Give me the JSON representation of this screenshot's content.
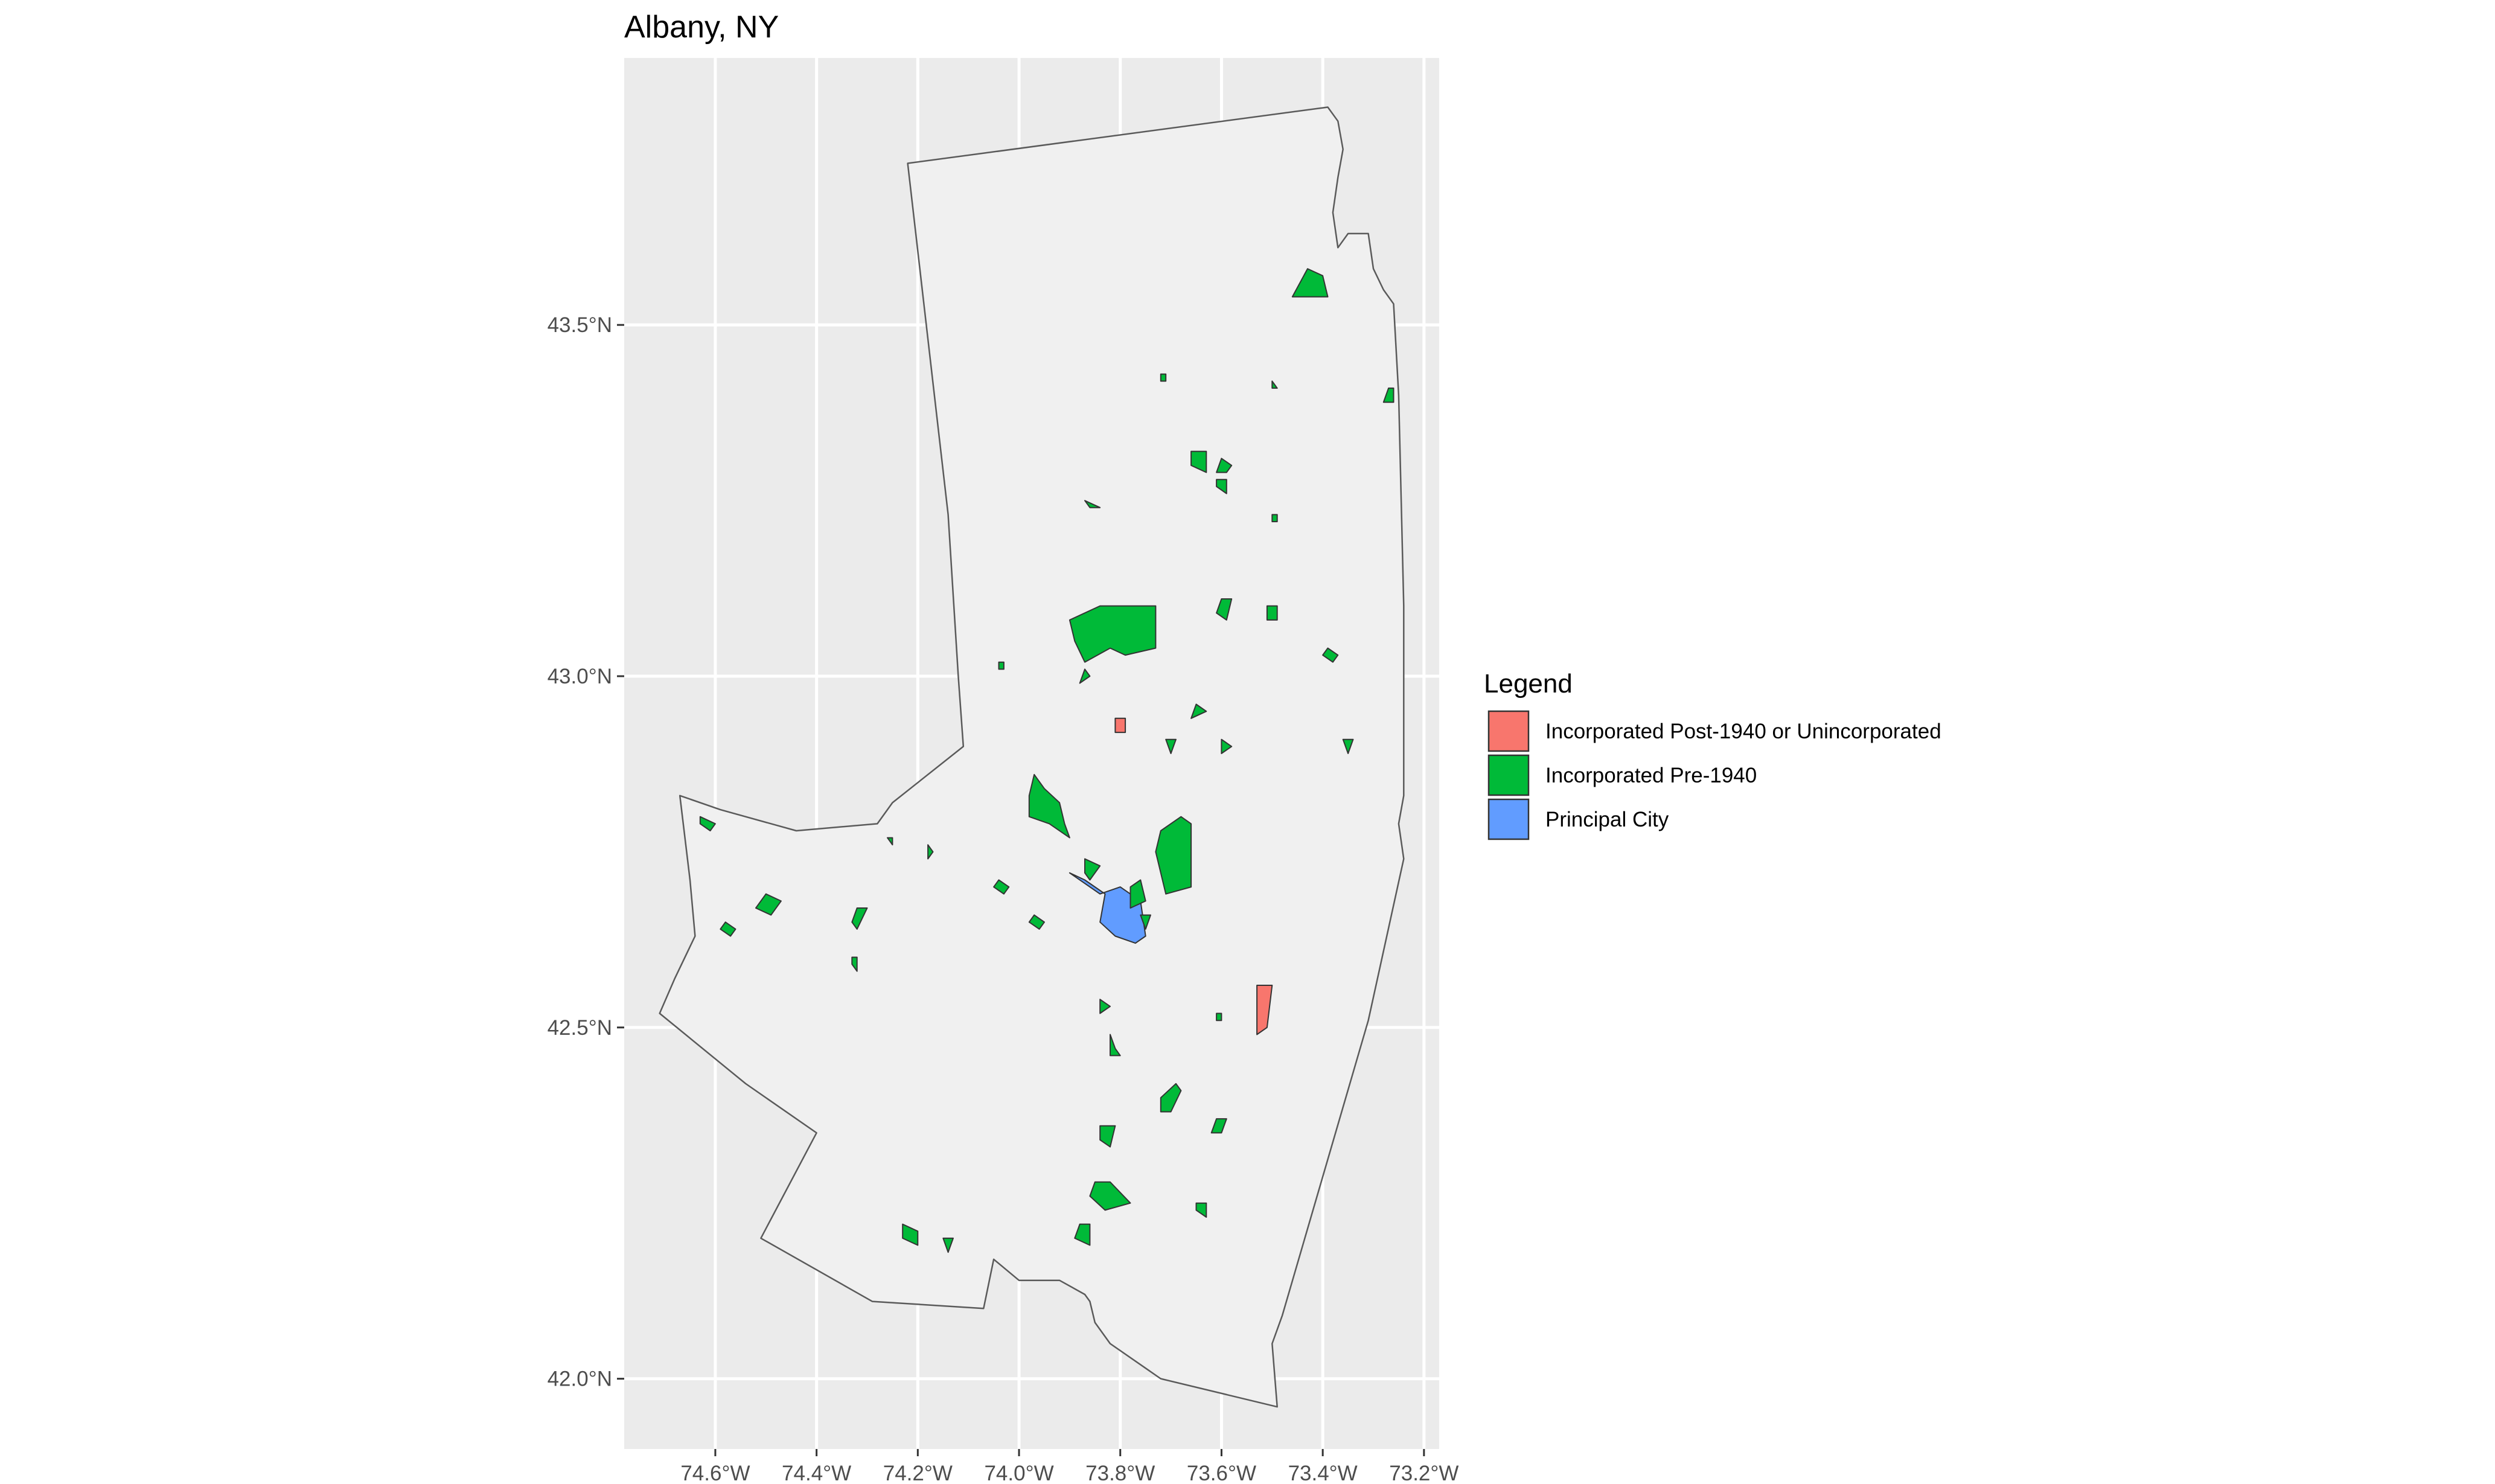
{
  "title": "Albany, NY",
  "colors": {
    "panel_background": "#ebebeb",
    "grid": "#ffffff",
    "region_fill": "#f0f0f0",
    "region_stroke": "#5a5a5a",
    "post1940": "#f8766d",
    "pre1940": "#00ba38",
    "principal": "#619cff",
    "shape_stroke": "#333333"
  },
  "axes": {
    "x_ticks": [
      "74.6°W",
      "74.4°W",
      "74.2°W",
      "74.0°W",
      "73.8°W",
      "73.6°W",
      "73.4°W",
      "73.2°W"
    ],
    "y_ticks": [
      "43.5°N",
      "43.0°N",
      "42.5°N",
      "42.0°N"
    ]
  },
  "legend": {
    "title": "Legend",
    "items": [
      {
        "label": "Incorporated Post-1940 or Unincorporated",
        "color": "#f8766d"
      },
      {
        "label": "Incorporated Pre-1940",
        "color": "#00ba38"
      },
      {
        "label": "Principal City",
        "color": "#619cff"
      }
    ]
  },
  "map_data": {
    "x_range": [
      -74.78,
      -73.17
    ],
    "y_range": [
      41.9,
      43.88
    ],
    "x_tick_values": [
      -74.6,
      -74.4,
      -74.2,
      -74.0,
      -73.8,
      -73.6,
      -73.4,
      -73.2
    ],
    "y_tick_values": [
      43.5,
      43.0,
      42.5,
      42.0
    ],
    "region_outline": [
      [
        -74.22,
        43.73
      ],
      [
        -73.39,
        43.81
      ],
      [
        -73.37,
        43.79
      ],
      [
        -73.36,
        43.75
      ],
      [
        -73.37,
        43.71
      ],
      [
        -73.38,
        43.66
      ],
      [
        -73.37,
        43.61
      ],
      [
        -73.35,
        43.63
      ],
      [
        -73.31,
        43.63
      ],
      [
        -73.3,
        43.58
      ],
      [
        -73.28,
        43.55
      ],
      [
        -73.26,
        43.53
      ],
      [
        -73.25,
        43.4
      ],
      [
        -73.24,
        43.1
      ],
      [
        -73.24,
        42.83
      ],
      [
        -73.25,
        42.79
      ],
      [
        -73.24,
        42.74
      ],
      [
        -73.31,
        42.51
      ],
      [
        -73.48,
        42.09
      ],
      [
        -73.5,
        42.05
      ],
      [
        -73.49,
        41.96
      ],
      [
        -73.72,
        42.0
      ],
      [
        -73.82,
        42.05
      ],
      [
        -73.85,
        42.08
      ],
      [
        -73.86,
        42.11
      ],
      [
        -73.87,
        42.12
      ],
      [
        -73.92,
        42.14
      ],
      [
        -74.0,
        42.14
      ],
      [
        -74.05,
        42.17
      ],
      [
        -74.07,
        42.1
      ],
      [
        -74.29,
        42.11
      ],
      [
        -74.51,
        42.2
      ],
      [
        -74.4,
        42.35
      ],
      [
        -74.54,
        42.42
      ],
      [
        -74.71,
        42.52
      ],
      [
        -74.68,
        42.57
      ],
      [
        -74.64,
        42.63
      ],
      [
        -74.65,
        42.71
      ],
      [
        -74.67,
        42.83
      ],
      [
        -74.59,
        42.81
      ],
      [
        -74.44,
        42.78
      ],
      [
        -74.28,
        42.79
      ],
      [
        -74.25,
        42.82
      ],
      [
        -74.11,
        42.9
      ],
      [
        -74.12,
        43.0
      ],
      [
        -74.14,
        43.23
      ],
      [
        -74.22,
        43.73
      ]
    ],
    "places": [
      {
        "category": "principal",
        "polygon": [
          [
            -73.9,
            42.72
          ],
          [
            -73.84,
            42.69
          ],
          [
            -73.8,
            42.7
          ],
          [
            -73.76,
            42.68
          ],
          [
            -73.75,
            42.63
          ],
          [
            -73.77,
            42.62
          ],
          [
            -73.81,
            42.63
          ],
          [
            -73.84,
            42.65
          ],
          [
            -73.83,
            42.69
          ],
          [
            -73.87,
            42.71
          ]
        ]
      },
      {
        "category": "pre1940",
        "polygon": [
          [
            -73.9,
            43.08
          ],
          [
            -73.84,
            43.1
          ],
          [
            -73.76,
            43.1
          ],
          [
            -73.73,
            43.1
          ],
          [
            -73.73,
            43.04
          ],
          [
            -73.79,
            43.03
          ],
          [
            -73.82,
            43.04
          ],
          [
            -73.87,
            43.02
          ],
          [
            -73.89,
            43.05
          ]
        ]
      },
      {
        "category": "pre1940",
        "polygon": [
          [
            -73.97,
            42.86
          ],
          [
            -73.95,
            42.84
          ],
          [
            -73.92,
            42.82
          ],
          [
            -73.91,
            42.79
          ],
          [
            -73.9,
            42.77
          ],
          [
            -73.94,
            42.79
          ],
          [
            -73.98,
            42.8
          ],
          [
            -73.98,
            42.83
          ]
        ]
      },
      {
        "category": "pre1940",
        "polygon": [
          [
            -73.72,
            42.78
          ],
          [
            -73.68,
            42.8
          ],
          [
            -73.66,
            42.79
          ],
          [
            -73.66,
            42.7
          ],
          [
            -73.71,
            42.69
          ],
          [
            -73.72,
            42.72
          ],
          [
            -73.73,
            42.75
          ]
        ]
      },
      {
        "category": "pre1940",
        "polygon": [
          [
            -73.78,
            42.7
          ],
          [
            -73.76,
            42.71
          ],
          [
            -73.75,
            42.68
          ],
          [
            -73.78,
            42.67
          ]
        ]
      },
      {
        "category": "pre1940",
        "polygon": [
          [
            -73.87,
            42.74
          ],
          [
            -73.84,
            42.73
          ],
          [
            -73.86,
            42.71
          ],
          [
            -73.87,
            42.72
          ]
        ]
      },
      {
        "category": "pre1940",
        "polygon": [
          [
            -73.43,
            43.58
          ],
          [
            -73.4,
            43.57
          ],
          [
            -73.39,
            43.54
          ],
          [
            -73.46,
            43.54
          ]
        ]
      },
      {
        "category": "pre1940",
        "polygon": [
          [
            -73.66,
            43.32
          ],
          [
            -73.63,
            43.32
          ],
          [
            -73.63,
            43.29
          ],
          [
            -73.66,
            43.3
          ]
        ]
      },
      {
        "category": "pre1940",
        "polygon": [
          [
            -73.6,
            43.31
          ],
          [
            -73.58,
            43.3
          ],
          [
            -73.59,
            43.29
          ],
          [
            -73.61,
            43.29
          ]
        ]
      },
      {
        "category": "pre1940",
        "polygon": [
          [
            -73.61,
            43.28
          ],
          [
            -73.59,
            43.28
          ],
          [
            -73.59,
            43.26
          ],
          [
            -73.61,
            43.27
          ]
        ]
      },
      {
        "category": "pre1940",
        "polygon": [
          [
            -73.87,
            43.25
          ],
          [
            -73.84,
            43.24
          ],
          [
            -73.86,
            43.24
          ]
        ]
      },
      {
        "category": "pre1940",
        "polygon": [
          [
            -73.72,
            43.43
          ],
          [
            -73.71,
            43.43
          ],
          [
            -73.71,
            43.42
          ],
          [
            -73.72,
            43.42
          ]
        ]
      },
      {
        "category": "pre1940",
        "polygon": [
          [
            -73.5,
            43.42
          ],
          [
            -73.49,
            43.41
          ],
          [
            -73.5,
            43.41
          ]
        ]
      },
      {
        "category": "pre1940",
        "polygon": [
          [
            -73.27,
            43.41
          ],
          [
            -73.26,
            43.41
          ],
          [
            -73.26,
            43.39
          ],
          [
            -73.28,
            43.39
          ]
        ]
      },
      {
        "category": "pre1940",
        "polygon": [
          [
            -73.5,
            43.23
          ],
          [
            -73.49,
            43.23
          ],
          [
            -73.49,
            43.22
          ],
          [
            -73.5,
            43.22
          ]
        ]
      },
      {
        "category": "pre1940",
        "polygon": [
          [
            -73.6,
            43.11
          ],
          [
            -73.58,
            43.11
          ],
          [
            -73.59,
            43.08
          ],
          [
            -73.61,
            43.09
          ]
        ]
      },
      {
        "category": "pre1940",
        "polygon": [
          [
            -73.51,
            43.1
          ],
          [
            -73.49,
            43.1
          ],
          [
            -73.49,
            43.08
          ],
          [
            -73.51,
            43.08
          ]
        ]
      },
      {
        "category": "pre1940",
        "polygon": [
          [
            -73.39,
            43.04
          ],
          [
            -73.37,
            43.03
          ],
          [
            -73.38,
            43.02
          ],
          [
            -73.4,
            43.03
          ]
        ]
      },
      {
        "category": "pre1940",
        "polygon": [
          [
            -73.87,
            43.01
          ],
          [
            -73.86,
            43.0
          ],
          [
            -73.88,
            42.99
          ]
        ]
      },
      {
        "category": "pre1940",
        "polygon": [
          [
            -74.04,
            43.02
          ],
          [
            -74.03,
            43.02
          ],
          [
            -74.03,
            43.01
          ],
          [
            -74.04,
            43.01
          ]
        ]
      },
      {
        "category": "pre1940",
        "polygon": [
          [
            -73.65,
            42.96
          ],
          [
            -73.63,
            42.95
          ],
          [
            -73.66,
            42.94
          ]
        ]
      },
      {
        "category": "pre1940",
        "polygon": [
          [
            -73.71,
            42.91
          ],
          [
            -73.69,
            42.91
          ],
          [
            -73.7,
            42.89
          ]
        ]
      },
      {
        "category": "pre1940",
        "polygon": [
          [
            -73.6,
            42.91
          ],
          [
            -73.58,
            42.9
          ],
          [
            -73.6,
            42.89
          ]
        ]
      },
      {
        "category": "pre1940",
        "polygon": [
          [
            -73.36,
            42.91
          ],
          [
            -73.34,
            42.91
          ],
          [
            -73.35,
            42.89
          ]
        ]
      },
      {
        "category": "pre1940",
        "polygon": [
          [
            -74.63,
            42.8
          ],
          [
            -74.6,
            42.79
          ],
          [
            -74.61,
            42.78
          ],
          [
            -74.63,
            42.79
          ]
        ]
      },
      {
        "category": "pre1940",
        "polygon": [
          [
            -74.5,
            42.69
          ],
          [
            -74.47,
            42.68
          ],
          [
            -74.49,
            42.66
          ],
          [
            -74.52,
            42.67
          ]
        ]
      },
      {
        "category": "pre1940",
        "polygon": [
          [
            -74.58,
            42.65
          ],
          [
            -74.56,
            42.64
          ],
          [
            -74.57,
            42.63
          ],
          [
            -74.59,
            42.64
          ]
        ]
      },
      {
        "category": "pre1940",
        "polygon": [
          [
            -74.32,
            42.67
          ],
          [
            -74.3,
            42.67
          ],
          [
            -74.32,
            42.64
          ],
          [
            -74.33,
            42.65
          ]
        ]
      },
      {
        "category": "pre1940",
        "polygon": [
          [
            -74.33,
            42.6
          ],
          [
            -74.32,
            42.6
          ],
          [
            -74.32,
            42.58
          ],
          [
            -74.33,
            42.59
          ]
        ]
      },
      {
        "category": "pre1940",
        "polygon": [
          [
            -74.26,
            42.77
          ],
          [
            -74.25,
            42.77
          ],
          [
            -74.25,
            42.76
          ]
        ]
      },
      {
        "category": "pre1940",
        "polygon": [
          [
            -74.18,
            42.76
          ],
          [
            -74.17,
            42.75
          ],
          [
            -74.18,
            42.74
          ]
        ]
      },
      {
        "category": "pre1940",
        "polygon": [
          [
            -74.04,
            42.71
          ],
          [
            -74.02,
            42.7
          ],
          [
            -74.03,
            42.69
          ],
          [
            -74.05,
            42.7
          ]
        ]
      },
      {
        "category": "pre1940",
        "polygon": [
          [
            -73.97,
            42.66
          ],
          [
            -73.95,
            42.65
          ],
          [
            -73.96,
            42.64
          ],
          [
            -73.98,
            42.65
          ]
        ]
      },
      {
        "category": "pre1940",
        "polygon": [
          [
            -73.76,
            42.66
          ],
          [
            -73.74,
            42.66
          ],
          [
            -73.75,
            42.64
          ]
        ]
      },
      {
        "category": "pre1940",
        "polygon": [
          [
            -73.84,
            42.54
          ],
          [
            -73.82,
            42.53
          ],
          [
            -73.84,
            42.52
          ]
        ]
      },
      {
        "category": "pre1940",
        "polygon": [
          [
            -73.61,
            42.52
          ],
          [
            -73.6,
            42.52
          ],
          [
            -73.6,
            42.51
          ],
          [
            -73.61,
            42.51
          ]
        ]
      },
      {
        "category": "pre1940",
        "polygon": [
          [
            -73.82,
            42.49
          ],
          [
            -73.81,
            42.47
          ],
          [
            -73.8,
            42.46
          ],
          [
            -73.82,
            42.46
          ]
        ]
      },
      {
        "category": "pre1940",
        "polygon": [
          [
            -73.72,
            42.4
          ],
          [
            -73.69,
            42.42
          ],
          [
            -73.68,
            42.41
          ],
          [
            -73.7,
            42.38
          ],
          [
            -73.72,
            42.38
          ]
        ]
      },
      {
        "category": "pre1940",
        "polygon": [
          [
            -73.61,
            42.37
          ],
          [
            -73.59,
            42.37
          ],
          [
            -73.6,
            42.35
          ],
          [
            -73.62,
            42.35
          ]
        ]
      },
      {
        "category": "pre1940",
        "polygon": [
          [
            -73.84,
            42.36
          ],
          [
            -73.81,
            42.36
          ],
          [
            -73.82,
            42.33
          ],
          [
            -73.84,
            42.34
          ]
        ]
      },
      {
        "category": "pre1940",
        "polygon": [
          [
            -73.85,
            42.28
          ],
          [
            -73.82,
            42.28
          ],
          [
            -73.78,
            42.25
          ],
          [
            -73.83,
            42.24
          ],
          [
            -73.86,
            42.26
          ]
        ]
      },
      {
        "category": "pre1940",
        "polygon": [
          [
            -73.65,
            42.25
          ],
          [
            -73.63,
            42.25
          ],
          [
            -73.63,
            42.23
          ],
          [
            -73.65,
            42.24
          ]
        ]
      },
      {
        "category": "pre1940",
        "polygon": [
          [
            -73.88,
            42.22
          ],
          [
            -73.86,
            42.22
          ],
          [
            -73.86,
            42.19
          ],
          [
            -73.89,
            42.2
          ]
        ]
      },
      {
        "category": "pre1940",
        "polygon": [
          [
            -74.23,
            42.22
          ],
          [
            -74.2,
            42.21
          ],
          [
            -74.2,
            42.19
          ],
          [
            -74.23,
            42.2
          ]
        ]
      },
      {
        "category": "pre1940",
        "polygon": [
          [
            -74.15,
            42.2
          ],
          [
            -74.13,
            42.2
          ],
          [
            -74.14,
            42.18
          ]
        ]
      },
      {
        "category": "post1940",
        "polygon": [
          [
            -73.53,
            42.56
          ],
          [
            -73.5,
            42.56
          ],
          [
            -73.51,
            42.5
          ],
          [
            -73.53,
            42.49
          ]
        ]
      },
      {
        "category": "post1940",
        "polygon": [
          [
            -73.81,
            42.94
          ],
          [
            -73.79,
            42.94
          ],
          [
            -73.79,
            42.92
          ],
          [
            -73.81,
            42.92
          ]
        ]
      }
    ]
  }
}
